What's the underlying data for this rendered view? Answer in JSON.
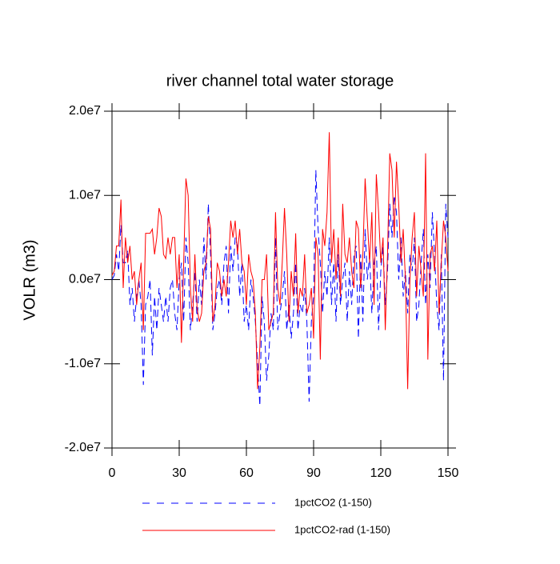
{
  "chart_data": {
    "type": "line",
    "title": "river channel total water storage",
    "y_label": "VOLR  (m3)",
    "x": [
      0,
      1,
      2,
      3,
      4,
      5,
      6,
      7,
      8,
      9,
      10,
      11,
      12,
      13,
      14,
      15,
      16,
      17,
      18,
      19,
      20,
      21,
      22,
      23,
      24,
      25,
      26,
      27,
      28,
      29,
      30,
      31,
      32,
      33,
      34,
      35,
      36,
      37,
      38,
      39,
      40,
      41,
      42,
      43,
      44,
      45,
      46,
      47,
      48,
      49,
      50,
      51,
      52,
      53,
      54,
      55,
      56,
      57,
      58,
      59,
      60,
      61,
      62,
      63,
      64,
      65,
      66,
      67,
      68,
      69,
      70,
      71,
      72,
      73,
      74,
      75,
      76,
      77,
      78,
      79,
      80,
      81,
      82,
      83,
      84,
      85,
      86,
      87,
      88,
      89,
      90,
      91,
      92,
      93,
      94,
      95,
      96,
      97,
      98,
      99,
      100,
      101,
      102,
      103,
      104,
      105,
      106,
      107,
      108,
      109,
      110,
      111,
      112,
      113,
      114,
      115,
      116,
      117,
      118,
      119,
      120,
      121,
      122,
      123,
      124,
      125,
      126,
      127,
      128,
      129,
      130,
      131,
      132,
      133,
      134,
      135,
      136,
      137,
      138,
      139,
      140,
      141,
      142,
      143,
      144,
      145,
      146,
      147,
      148,
      149,
      150
    ],
    "series": [
      {
        "name": "1pctCO2 (1-150)",
        "color": "#0000ff",
        "dashed": true,
        "values": [
          0,
          500000.0,
          3000000.0,
          1000000.0,
          6500000.0,
          2000000.0,
          2000000.0,
          3500000.0,
          -3000000.0,
          -1000000.0,
          -5000000.0,
          -2000000.0,
          0,
          -3000000.0,
          -12500000.0,
          -3000000.0,
          -2000000.0,
          0,
          -9000000.0,
          -2000000.0,
          -6000000.0,
          -1000000.0,
          -3000000.0,
          -5000000.0,
          -2000000.0,
          -5000000.0,
          -1000000.0,
          0,
          -4000000.0,
          -6000000.0,
          0,
          2000000.0,
          -5000000.0,
          5000000.0,
          2000000.0,
          -6000000.0,
          -3000000.0,
          1000000.0,
          -5000000.0,
          0,
          -3000000.0,
          5000000.0,
          0,
          9000000.0,
          3000000.0,
          -6000000.0,
          -4000000.0,
          -1000000.0,
          0,
          -3000000.0,
          2000000.0,
          4000000.0,
          -4000000.0,
          4000000.0,
          1000000.0,
          5000000.0,
          4000000.0,
          -2000000.0,
          2000000.0,
          -5000000.0,
          -3000000.0,
          -6000000.0,
          0,
          -2000000.0,
          -5000000.0,
          -10000000.0,
          -15000000.0,
          -2000000.0,
          -5000000.0,
          -12000000.0,
          -9000000.0,
          -4000000.0,
          -6000000.0,
          5000000.0,
          -6000000.0,
          -4000000.0,
          -2000000.0,
          1000000.0,
          -6000000.0,
          -3000000.0,
          -7000000.0,
          -4000000.0,
          2000000.0,
          -6000000.0,
          -3000000.0,
          -4000000.0,
          -1000000.0,
          -5000000.0,
          -14500000.0,
          -5000000.0,
          -2000000.0,
          13000000.0,
          6000000.0,
          2000000.0,
          -4000000.0,
          1000000.0,
          -2000000.0,
          5000000.0,
          -3000000.0,
          2000000.0,
          -5000000.0,
          3000000.0,
          -3000000.0,
          0,
          2000000.0,
          -5000000.0,
          1000000.0,
          -3000000.0,
          3000000.0,
          4000000.0,
          -7000000.0,
          3000000.0,
          -5000000.0,
          6000000.0,
          0,
          3000000.0,
          -4000000.0,
          2000000.0,
          4000000.0,
          -6000000.0,
          1000000.0,
          4000000.0,
          -3000000.0,
          1000000.0,
          9000000.0,
          5000000.0,
          10000000.0,
          8000000.0,
          0,
          5000000.0,
          -2000000.0,
          1000000.0,
          -4000000.0,
          3000000.0,
          1000000.0,
          5000000.0,
          -5000000.0,
          -3000000.0,
          2000000.0,
          6000000.0,
          -3000000.0,
          3000000.0,
          -1000000.0,
          8000000.0,
          3000000.0,
          -3000000.0,
          -6000000.0,
          3000000.0,
          -12000000.0,
          9000000.0,
          5000000.0
        ]
      },
      {
        "name": "1pctCO2-rad (1-150)",
        "color": "#ff0000",
        "dashed": false,
        "values": [
          500000.0,
          1000000.0,
          4000000.0,
          4000000.0,
          9500000.0,
          -1000000.0,
          5000000.0,
          2000000.0,
          4000000.0,
          0,
          1000000.0,
          -3000000.0,
          0,
          2000000.0,
          -6000000.0,
          5500000.0,
          5500000.0,
          5500000.0,
          6000000.0,
          3000000.0,
          5000000.0,
          8500000.0,
          7500000.0,
          3000000.0,
          2500000.0,
          5000000.0,
          3000000.0,
          5000000.0,
          5000000.0,
          -1000000.0,
          3000000.0,
          -7500000.0,
          2000000.0,
          12000000.0,
          10000000.0,
          -1000000.0,
          -5000000.0,
          3000000.0,
          -3500000.0,
          -5000000.0,
          -4000000.0,
          1000000.0,
          2000000.0,
          7500000.0,
          6000000.0,
          -5000000.0,
          -3000000.0,
          2000000.0,
          1000000.0,
          -2000000.0,
          0,
          -2000000.0,
          2000000.0,
          7000000.0,
          5000000.0,
          7000000.0,
          3000000.0,
          6000000.0,
          2000000.0,
          1000000.0,
          -3000000.0,
          3000000.0,
          1000000.0,
          0,
          -4000000.0,
          -13000000.0,
          -8000000.0,
          0,
          0,
          3000000.0,
          -6000000.0,
          -5000000.0,
          -4000000.0,
          8000000.0,
          -1000000.0,
          -3000000.0,
          2000000.0,
          8500000.0,
          3000000.0,
          -5000000.0,
          1000000.0,
          -2000000.0,
          5500000.0,
          -4000000.0,
          -1000000.0,
          -2000000.0,
          3000000.0,
          -4000000.0,
          -3000000.0,
          -1000000.0,
          -7000000.0,
          5000000.0,
          3000000.0,
          -9500000.0,
          6000000.0,
          4000000.0,
          8000000.0,
          17500000.0,
          2000000.0,
          6000000.0,
          0,
          5000000.0,
          -2000000.0,
          9000000.0,
          3000000.0,
          2000000.0,
          5000000.0,
          1000000.0,
          -1000000.0,
          7000000.0,
          6000000.0,
          -1000000.0,
          3000000.0,
          12000000.0,
          7000000.0,
          2000000.0,
          8000000.0,
          -3000000.0,
          12500000.0,
          8000000.0,
          2000000.0,
          5000000.0,
          -6000000.0,
          3000000.0,
          15000000.0,
          13000000.0,
          5000000.0,
          14000000.0,
          9000000.0,
          2000000.0,
          6000000.0,
          0,
          -13000000.0,
          0,
          5000000.0,
          8000000.0,
          -2000000.0,
          4000000.0,
          1000000.0,
          -2000000.0,
          15000000.0,
          -9500000.0,
          3000000.0,
          4000000.0,
          1000000.0,
          7000000.0,
          -4000000.0,
          2000000.0,
          7000000.0,
          5000000.0,
          1000000.0
        ]
      }
    ],
    "xlim": [
      0,
      150
    ],
    "xticks": [
      0,
      30,
      60,
      90,
      120,
      150
    ],
    "ylim": [
      -20000000.0,
      20000000.0
    ],
    "yticks": [
      {
        "value": -20000000.0,
        "label": "-2.0e7"
      },
      {
        "value": -10000000.0,
        "label": "-1.0e7"
      },
      {
        "value": 0,
        "label": "0.0e7"
      },
      {
        "value": 10000000.0,
        "label": "1.0e7"
      },
      {
        "value": 20000000.0,
        "label": "2.0e7"
      }
    ],
    "legend": "bottom"
  }
}
